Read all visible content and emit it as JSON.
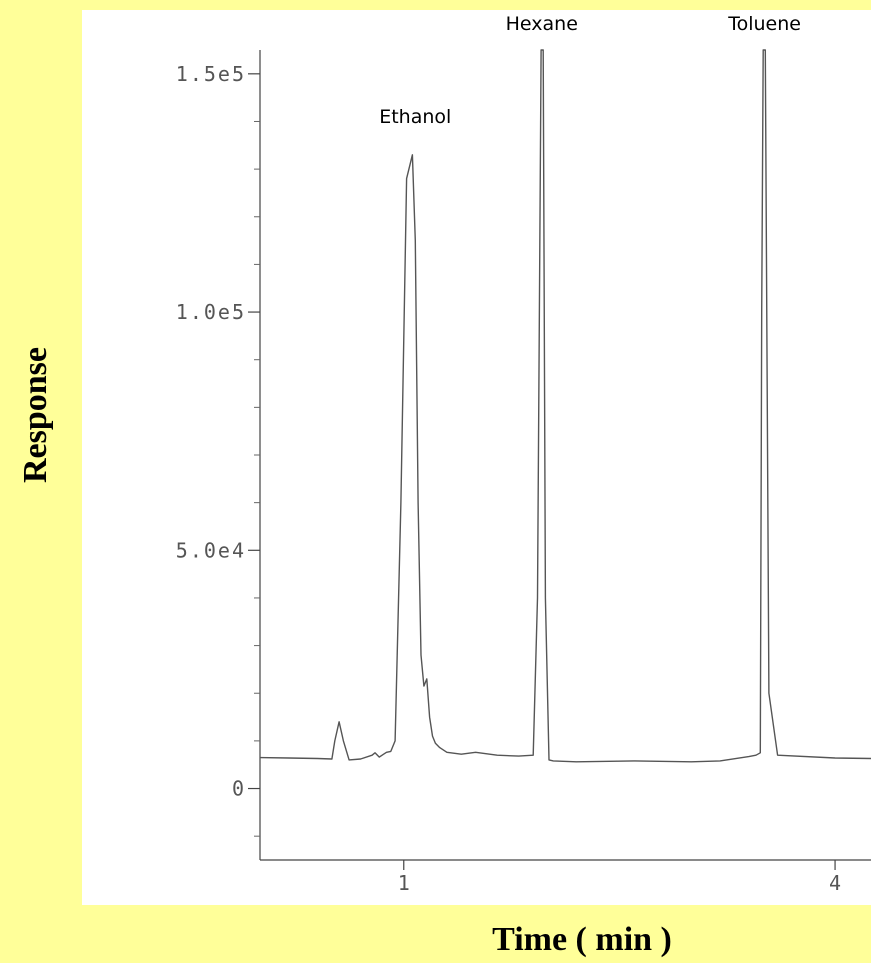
{
  "chart_data": {
    "type": "line",
    "xlabel": "Time ( min )",
    "ylabel": "Response",
    "xlim": [
      0,
      4.25
    ],
    "ylim": [
      -15000,
      155000
    ],
    "x_ticks": [
      {
        "value": 1,
        "label": "1"
      },
      {
        "value": 4,
        "label": "4"
      }
    ],
    "y_ticks": [
      {
        "value": 0,
        "label": "0"
      },
      {
        "value": 50000,
        "label": "5.0e4"
      },
      {
        "value": 100000,
        "label": "1.0e5"
      },
      {
        "value": 150000,
        "label": "1.5e5"
      }
    ],
    "y_minor_step": 10000,
    "grid": false,
    "series": [
      {
        "x": [
          0.0,
          0.2,
          0.4,
          0.5,
          0.52,
          0.55,
          0.58,
          0.62,
          0.7,
          0.78,
          0.8,
          0.83,
          0.86,
          0.88,
          0.91,
          0.94,
          0.98,
          1.02,
          1.06,
          1.08,
          1.1,
          1.12,
          1.14,
          1.16,
          1.18,
          1.2,
          1.22,
          1.25,
          1.3,
          1.4,
          1.5,
          1.65,
          1.8,
          1.9,
          1.93,
          1.955,
          1.97,
          1.985,
          2.01,
          2.04,
          2.2,
          2.6,
          3.0,
          3.2,
          3.4,
          3.45,
          3.48,
          3.49,
          3.5,
          3.515,
          3.54,
          3.6,
          4.0,
          4.25
        ],
        "y": [
          6500,
          6400,
          6300,
          6200,
          10000,
          14000,
          10000,
          6000,
          6200,
          7000,
          7500,
          6600,
          7200,
          7600,
          7800,
          10000,
          60000,
          128000,
          133000,
          115000,
          60000,
          28000,
          21500,
          23000,
          15000,
          11000,
          9500,
          8600,
          7600,
          7200,
          7600,
          7000,
          6800,
          7000,
          40000,
          155000,
          155000,
          40000,
          6000,
          5800,
          5600,
          5800,
          5600,
          5800,
          6700,
          7000,
          7500,
          100000,
          155000,
          155000,
          20000,
          7000,
          6400,
          6300
        ]
      }
    ],
    "peaks": [
      {
        "label": "Ethanol",
        "x": 1.08
      },
      {
        "label": "Hexane",
        "x": 1.96
      },
      {
        "label": "Toluene",
        "x": 3.51
      }
    ]
  }
}
